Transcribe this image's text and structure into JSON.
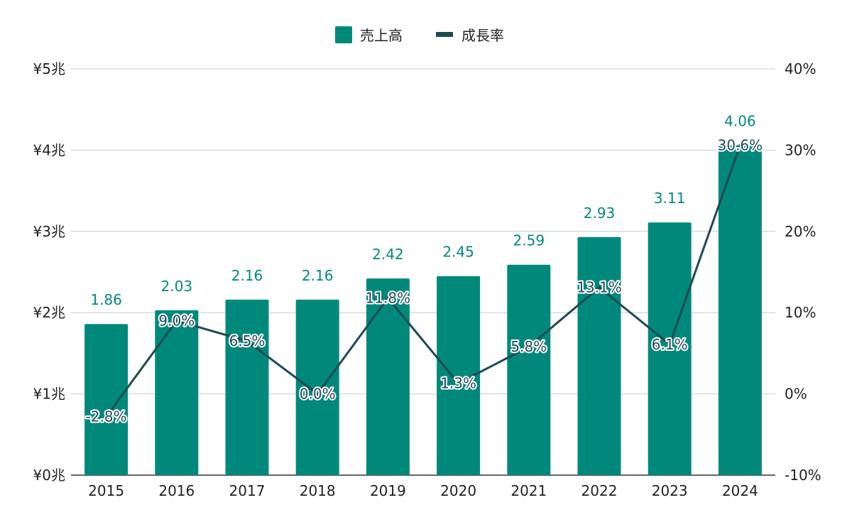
{
  "chart_data": {
    "type": "bar",
    "categories": [
      "2015",
      "2016",
      "2017",
      "2018",
      "2019",
      "2020",
      "2021",
      "2022",
      "2023",
      "2024"
    ],
    "series": [
      {
        "name": "売上高",
        "type": "bar",
        "axis": "left",
        "color": "#00897b",
        "values": [
          1.86,
          2.03,
          2.16,
          2.16,
          2.42,
          2.45,
          2.59,
          2.93,
          3.11,
          4.06
        ],
        "value_labels": [
          "1.86",
          "2.03",
          "2.16",
          "2.16",
          "2.42",
          "2.45",
          "2.59",
          "2.93",
          "3.11",
          "4.06"
        ]
      },
      {
        "name": "成長率",
        "type": "line",
        "axis": "right",
        "color": "#1e4a52",
        "values": [
          -2.8,
          9.0,
          6.5,
          0.0,
          11.8,
          1.3,
          5.8,
          13.1,
          6.1,
          30.6
        ],
        "value_labels": [
          "-2.8%",
          "9.0%",
          "6.5%",
          "0.0%",
          "11.8%",
          "1.3%",
          "5.8%",
          "13.1%",
          "6.1%",
          "30.6%"
        ]
      }
    ],
    "y_left": {
      "range": [
        0,
        5
      ],
      "ticks": [
        0,
        1,
        2,
        3,
        4,
        5
      ],
      "tick_labels": [
        "¥0兆",
        "¥1兆",
        "¥2兆",
        "¥3兆",
        "¥4兆",
        "¥5兆"
      ]
    },
    "y_right": {
      "range": [
        -10,
        40
      ],
      "ticks": [
        -10,
        0,
        10,
        20,
        30,
        40
      ],
      "tick_labels": [
        "-10%",
        "0%",
        "10%",
        "20%",
        "30%",
        "40%"
      ]
    },
    "grid": true,
    "legend_position": "top-center",
    "title": "",
    "xlabel": "",
    "ylabel": ""
  }
}
